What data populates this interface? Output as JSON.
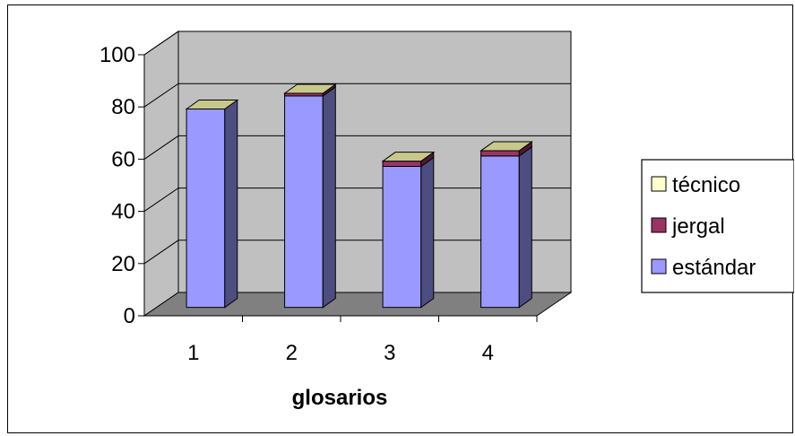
{
  "chart_data": {
    "type": "bar",
    "stacked": true,
    "three_d": true,
    "categories": [
      "1",
      "2",
      "3",
      "4"
    ],
    "series": [
      {
        "name": "estándar",
        "values": [
          76,
          81,
          54,
          58
        ],
        "color": "#9999FF"
      },
      {
        "name": "jergal",
        "values": [
          0,
          1,
          2,
          2
        ],
        "color": "#993366"
      },
      {
        "name": "técnico",
        "values": [
          0,
          0,
          0,
          0
        ],
        "color": "#FFFFCC"
      }
    ],
    "title": "",
    "xlabel": "glosarios",
    "ylabel": "",
    "ylim": [
      0,
      100
    ],
    "yticks": [
      "0",
      "20",
      "40",
      "60",
      "80",
      "100"
    ],
    "grid": true,
    "legend_position": "right",
    "legend_order": [
      "técnico",
      "jergal",
      "estándar"
    ],
    "wall_color": "#C0C0C0",
    "floor_color": "#808080"
  }
}
